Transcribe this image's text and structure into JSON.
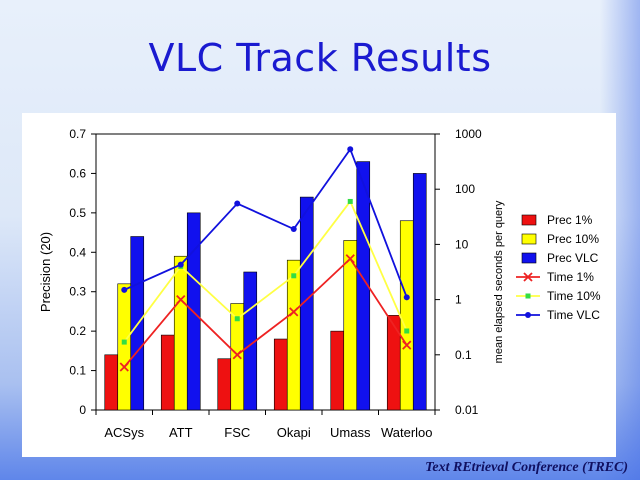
{
  "slide": {
    "title": "VLC Track Results",
    "footer": "Text REtrieval Conference (TREC)"
  },
  "chart_data": {
    "type": "bar",
    "categories": [
      "ACSys",
      "ATT",
      "FSC",
      "Okapi",
      "Umass",
      "Waterloo"
    ],
    "ylabel": "Precision (20)",
    "ylim": [
      0,
      0.7
    ],
    "yticks": [
      "0",
      "0.1",
      "0.2",
      "0.3",
      "0.4",
      "0.5",
      "0.6",
      "0.7"
    ],
    "y2label": "mean elapsed seconds per query",
    "y2scale": "log",
    "y2lim": [
      0.01,
      1000
    ],
    "y2ticks": [
      "0.01",
      "0.1",
      "1",
      "10",
      "100",
      "1000"
    ],
    "series": [
      {
        "name": "Prec 1%",
        "kind": "bar",
        "color": "#ee1111",
        "values": [
          0.14,
          0.19,
          0.13,
          0.18,
          0.2,
          0.24
        ]
      },
      {
        "name": "Prec 10%",
        "kind": "bar",
        "color": "#ffff00",
        "values": [
          0.32,
          0.39,
          0.27,
          0.38,
          0.43,
          0.48
        ]
      },
      {
        "name": "Prec VLC",
        "kind": "bar",
        "color": "#1111ee",
        "values": [
          0.44,
          0.5,
          0.35,
          0.54,
          0.63,
          0.6
        ]
      },
      {
        "name": "Time 1%",
        "kind": "line",
        "axis": "y2",
        "color": "#ee2222",
        "marker": "x",
        "values": [
          0.06,
          1.0,
          0.1,
          0.6,
          5.5,
          0.15
        ]
      },
      {
        "name": "Time 10%",
        "kind": "line",
        "axis": "y2",
        "color": "#ffff44",
        "marker": "square",
        "values": [
          0.17,
          4.0,
          0.45,
          2.7,
          60,
          0.27
        ]
      },
      {
        "name": "Time VLC",
        "kind": "line",
        "axis": "y2",
        "color": "#1111dd",
        "marker": "circle",
        "values": [
          1.5,
          4.3,
          55,
          19,
          530,
          1.1
        ]
      }
    ],
    "legend_position": "right"
  }
}
